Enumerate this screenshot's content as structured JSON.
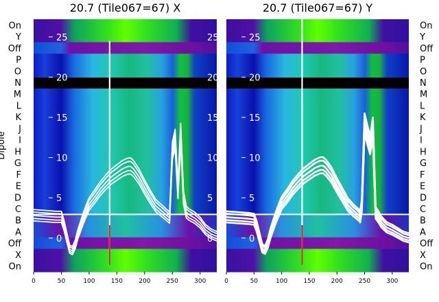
{
  "chart_data": [
    {
      "type": "heatmap",
      "title": "20.7 (Tile067=67) X",
      "ylabel": "Dipole",
      "x_ticks": [
        0,
        50,
        100,
        150,
        200,
        250,
        300
      ],
      "xlim": [
        0,
        330
      ],
      "y_overlay_ticks": [
        0,
        5,
        10,
        15,
        20,
        25
      ],
      "y_overlay_ylim": [
        -4.2,
        27.2
      ],
      "row_labels": [
        "On",
        "Y",
        "Off",
        "P",
        "O",
        "N",
        "M",
        "L",
        "K",
        "J",
        "I",
        "H",
        "G",
        "F",
        "E",
        "D",
        "C",
        "B",
        "A",
        "Off",
        "X",
        "On"
      ],
      "bandpass_line": {
        "x": [
          0,
          20,
          40,
          50,
          55,
          60,
          65,
          70,
          75,
          80,
          90,
          100,
          110,
          120,
          130,
          140,
          150,
          160,
          170,
          175,
          180,
          190,
          200,
          210,
          220,
          230,
          240,
          245,
          250,
          255,
          260,
          265,
          270,
          275,
          280,
          290,
          300,
          310,
          320,
          330
        ],
        "y": [
          2.8,
          2.7,
          2.6,
          2.6,
          1.5,
          0,
          -1.4,
          -1.6,
          -0.8,
          0.5,
          2.5,
          4.2,
          5.1,
          6.1,
          6.9,
          7.6,
          8.1,
          8.6,
          8.9,
          8.9,
          8.6,
          7.6,
          6.3,
          5.1,
          4.0,
          3.4,
          2.8,
          2.5,
          10.8,
          12.3,
          5.7,
          13.0,
          5.0,
          3.2,
          2.9,
          2.5,
          1.9,
          1.0,
          0.5,
          0.2
        ]
      },
      "spike": {
        "x": 137,
        "y_top": 24.5
      },
      "separator_row_between": [
        "C",
        "B"
      ]
    },
    {
      "type": "heatmap",
      "title": "20.7 (Tile067=67) Y",
      "x_ticks": [
        0,
        50,
        100,
        150,
        200,
        250,
        300
      ],
      "xlim": [
        0,
        330
      ],
      "y_overlay_ticks": [
        0,
        5,
        10,
        15,
        20,
        25
      ],
      "y_overlay_ylim": [
        -4.2,
        27.2
      ],
      "row_labels": [
        "On",
        "Y",
        "Off",
        "P",
        "O",
        "N",
        "M",
        "L",
        "K",
        "J",
        "I",
        "H",
        "G",
        "F",
        "E",
        "D",
        "C",
        "B",
        "A",
        "Off",
        "X",
        "On"
      ],
      "bandpass_line": {
        "x": [
          0,
          20,
          40,
          50,
          55,
          60,
          65,
          70,
          75,
          80,
          90,
          100,
          110,
          120,
          130,
          140,
          150,
          160,
          170,
          175,
          180,
          190,
          200,
          210,
          220,
          230,
          240,
          242,
          245,
          250,
          255,
          260,
          265,
          270,
          275,
          280,
          290,
          300,
          310,
          320,
          330
        ],
        "y": [
          2.6,
          2.5,
          2.4,
          2.3,
          1.4,
          0,
          -1.3,
          -1.5,
          -0.7,
          0.6,
          2.6,
          4.3,
          5.2,
          6.2,
          7.0,
          7.7,
          8.2,
          8.7,
          9.0,
          9.0,
          8.7,
          7.8,
          6.5,
          5.3,
          4.1,
          3.4,
          2.8,
          2.6,
          4.0,
          14.2,
          12.8,
          11.5,
          13.7,
          3.1,
          2.6,
          2.0,
          1.3,
          1.0,
          0.6,
          0.2,
          0.0
        ]
      },
      "spike": {
        "x": 137,
        "y_top": 27.2
      },
      "separator_row_between": [
        "C",
        "B"
      ]
    }
  ]
}
